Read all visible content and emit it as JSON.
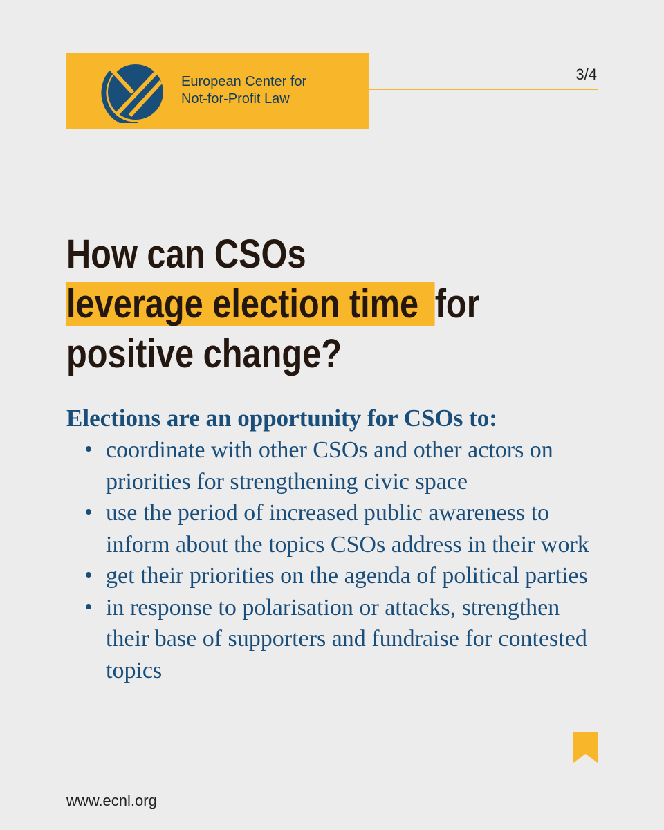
{
  "header": {
    "org_name_line1": "European Center for",
    "org_name_line2": "Not-for-Profit Law",
    "page_indicator": "3/4",
    "logo_icon": "ecnl-logo-icon"
  },
  "colors": {
    "accent_yellow": "#f8b72a",
    "headline_text": "#24170f",
    "body_blue": "#194d7a",
    "background": "#ececec"
  },
  "headline": {
    "line1": "How can CSOs",
    "line2_highlight": "leverage election time ",
    "line2_rest": "for",
    "line3": "positive change?"
  },
  "intro": "Elections are an opportunity for CSOs to:",
  "bullets": [
    "coordinate with other CSOs and other actors on priorities for strengthening civic space",
    "use the period of increased public awareness to inform about the topics CSOs address in their work",
    "get their priorities on the agenda of political parties",
    "in response to polarisation or attacks, strengthen their base of supporters and fundraise for contested topics"
  ],
  "footer": {
    "website": "www.ecnl.org",
    "bookmark_icon": "bookmark-icon"
  }
}
